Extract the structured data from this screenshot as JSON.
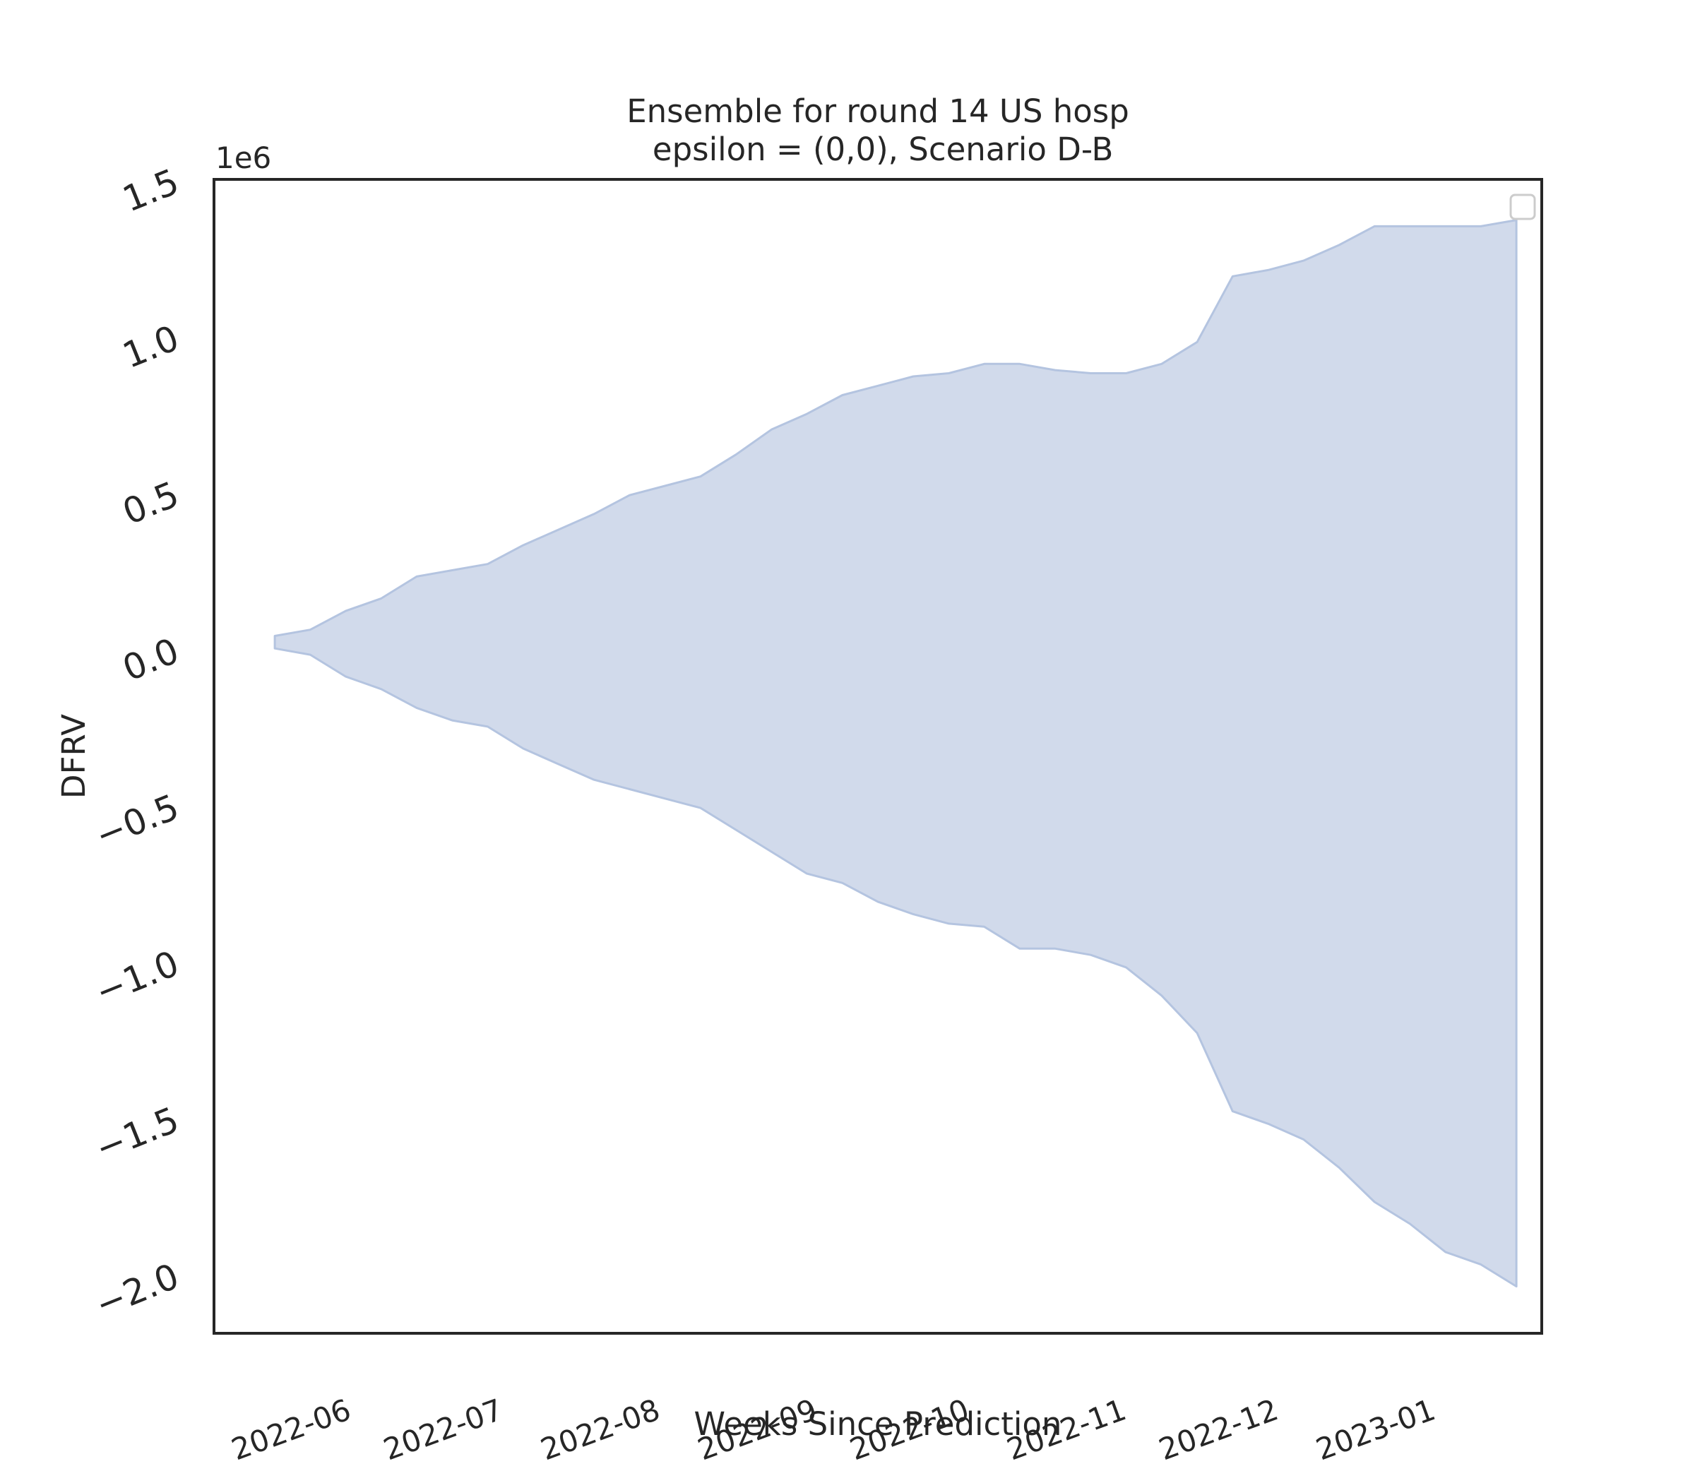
{
  "chart_data": {
    "type": "area",
    "title": "Ensemble for round 14 US hosp\n epsilon = (0,0), Scenario D-B",
    "xlabel": "Weeks Since Prediction",
    "ylabel": "DFRV",
    "y_offset_label": "1e6",
    "ylim": [
      -2.19,
      1.5
    ],
    "y_ticks": [
      {
        "value": 1.5,
        "label": "1.5"
      },
      {
        "value": 1.0,
        "label": "1.0"
      },
      {
        "value": 0.5,
        "label": "0.5"
      },
      {
        "value": 0.0,
        "label": "0.0"
      },
      {
        "value": -0.5,
        "label": "−0.5"
      },
      {
        "value": -1.0,
        "label": "−1.0"
      },
      {
        "value": -1.5,
        "label": "−1.5"
      },
      {
        "value": -2.0,
        "label": "−2.0"
      }
    ],
    "xlim": [
      "2022-05-06",
      "2023-01-23"
    ],
    "x_ticks": [
      "2022-06-01",
      "2022-07-01",
      "2022-08-01",
      "2022-09-01",
      "2022-10-01",
      "2022-11-01",
      "2022-12-01",
      "2023-01-01"
    ],
    "x_tick_labels": [
      "2022-06",
      "2022-07",
      "2022-08",
      "2022-09",
      "2022-10",
      "2022-11",
      "2022-12",
      "2023-01"
    ],
    "x": [
      "2022-05-18",
      "2022-05-25",
      "2022-06-01",
      "2022-06-08",
      "2022-06-15",
      "2022-06-22",
      "2022-06-29",
      "2022-07-06",
      "2022-07-13",
      "2022-07-20",
      "2022-07-27",
      "2022-08-03",
      "2022-08-10",
      "2022-08-17",
      "2022-08-24",
      "2022-08-31",
      "2022-09-07",
      "2022-09-14",
      "2022-09-21",
      "2022-09-28",
      "2022-10-05",
      "2022-10-12",
      "2022-10-19",
      "2022-10-26",
      "2022-11-02",
      "2022-11-09",
      "2022-11-16",
      "2022-11-23",
      "2022-11-30",
      "2022-12-07",
      "2022-12-14",
      "2022-12-21",
      "2022-12-28",
      "2023-01-04",
      "2023-01-11",
      "2023-01-18"
    ],
    "upper": [
      0.04,
      0.06,
      0.12,
      0.16,
      0.23,
      0.25,
      0.27,
      0.33,
      0.38,
      0.43,
      0.49,
      0.52,
      0.55,
      0.62,
      0.7,
      0.75,
      0.81,
      0.84,
      0.87,
      0.88,
      0.91,
      0.91,
      0.89,
      0.88,
      0.88,
      0.91,
      0.98,
      1.19,
      1.21,
      1.24,
      1.29,
      1.35,
      1.35,
      1.35,
      1.35,
      1.37
    ],
    "lower": [
      0.0,
      -0.02,
      -0.09,
      -0.13,
      -0.19,
      -0.23,
      -0.25,
      -0.32,
      -0.37,
      -0.42,
      -0.45,
      -0.48,
      -0.51,
      -0.58,
      -0.65,
      -0.72,
      -0.75,
      -0.81,
      -0.85,
      -0.88,
      -0.89,
      -0.96,
      -0.96,
      -0.98,
      -1.02,
      -1.11,
      -1.23,
      -1.48,
      -1.52,
      -1.57,
      -1.66,
      -1.77,
      -1.84,
      -1.93,
      -1.97,
      -2.04
    ],
    "fill_color": "#d1daeb",
    "edge_color": "#b4c4e0",
    "grid": false,
    "legend": {
      "position": "top-right",
      "entries": []
    }
  }
}
